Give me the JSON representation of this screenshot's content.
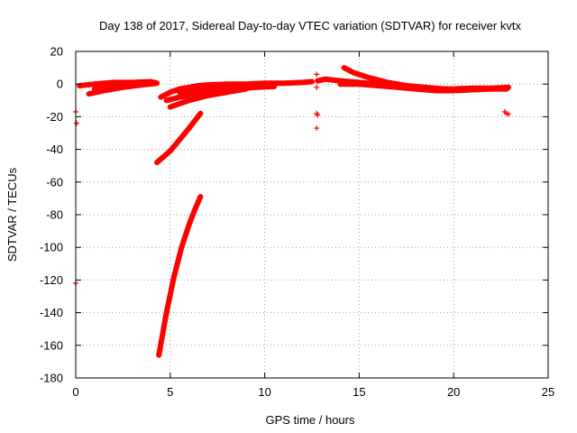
{
  "chart_data": {
    "type": "scatter",
    "title": "Day 138 of 2017, Sidereal Day-to-day VTEC variation (SDTVAR) for receiver kvtx",
    "xlabel": "GPS time / hours",
    "ylabel": "SDTVAR / TECUs",
    "xlim": [
      0,
      25
    ],
    "ylim": [
      -180,
      20
    ],
    "xticks": [
      0,
      5,
      10,
      15,
      20,
      25
    ],
    "yticks": [
      20,
      0,
      -20,
      -40,
      -60,
      -80,
      -100,
      -120,
      -140,
      -160,
      -180
    ],
    "grid": true,
    "marker": "+",
    "color": "#ff0000",
    "series": [
      {
        "tracks": [
          [
            [
              0.2,
              -1
            ],
            [
              1.0,
              0
            ],
            [
              2.0,
              1
            ],
            [
              3.0,
              1
            ],
            [
              4.0,
              1.5
            ]
          ],
          [
            [
              0.7,
              -6
            ],
            [
              1.5,
              -4
            ],
            [
              2.5,
              -2
            ],
            [
              3.5,
              -0.5
            ],
            [
              4.3,
              0.5
            ]
          ],
          [
            [
              1.0,
              -3
            ],
            [
              2.0,
              -1
            ],
            [
              3.0,
              0.5
            ],
            [
              4.2,
              1
            ]
          ],
          [
            [
              4.5,
              -8
            ],
            [
              5.0,
              -5
            ],
            [
              5.5,
              -3
            ],
            [
              6.0,
              -2
            ],
            [
              6.5,
              -1
            ],
            [
              7.0,
              -0.5
            ],
            [
              8.0,
              0
            ],
            [
              9.0,
              0
            ],
            [
              10.0,
              0.5
            ],
            [
              11.0,
              0.5
            ],
            [
              12.0,
              1
            ],
            [
              12.5,
              1.5
            ]
          ],
          [
            [
              4.8,
              -10
            ],
            [
              5.5,
              -8
            ],
            [
              6.5,
              -6
            ],
            [
              7.5,
              -4
            ],
            [
              8.5,
              -3
            ],
            [
              9.5,
              -2
            ],
            [
              10.5,
              -1.5
            ]
          ],
          [
            [
              5.0,
              -14
            ],
            [
              5.5,
              -12
            ],
            [
              6.0,
              -10
            ],
            [
              7.0,
              -7
            ],
            [
              8.0,
              -5
            ],
            [
              9.0,
              -3
            ]
          ],
          [
            [
              5.5,
              -5
            ],
            [
              6.5,
              -3
            ],
            [
              7.5,
              -2
            ],
            [
              8.5,
              -1.5
            ],
            [
              9.5,
              -1
            ],
            [
              10.5,
              -0.5
            ]
          ],
          [
            [
              4.3,
              -48
            ],
            [
              5.0,
              -41
            ],
            [
              5.5,
              -34
            ],
            [
              6.0,
              -27
            ],
            [
              6.6,
              -18
            ]
          ],
          [
            [
              4.4,
              -166
            ],
            [
              4.8,
              -140
            ],
            [
              5.2,
              -118
            ],
            [
              5.6,
              -100
            ],
            [
              6.0,
              -86
            ],
            [
              6.3,
              -77
            ],
            [
              6.6,
              -69
            ]
          ],
          [
            [
              12.8,
              2
            ],
            [
              13.2,
              3
            ],
            [
              14.0,
              2
            ],
            [
              15.0,
              1
            ],
            [
              16.0,
              0
            ],
            [
              17.0,
              -1
            ],
            [
              18.0,
              -2
            ],
            [
              19.0,
              -3
            ],
            [
              20.0,
              -3
            ],
            [
              21.0,
              -2.5
            ],
            [
              22.0,
              -2.5
            ],
            [
              22.9,
              -2
            ]
          ],
          [
            [
              14.2,
              10
            ],
            [
              14.7,
              7
            ],
            [
              15.5,
              4
            ],
            [
              16.5,
              1
            ],
            [
              17.5,
              -1
            ],
            [
              18.5,
              -2
            ],
            [
              19.5,
              -3
            ],
            [
              20.5,
              -3.5
            ]
          ],
          [
            [
              14.0,
              0
            ],
            [
              15.0,
              0
            ],
            [
              16.0,
              -1
            ],
            [
              17.0,
              -2
            ],
            [
              18.0,
              -3
            ],
            [
              19.0,
              -4
            ],
            [
              20.0,
              -4
            ],
            [
              21.0,
              -3.5
            ],
            [
              22.0,
              -3
            ],
            [
              22.8,
              -3
            ]
          ]
        ],
        "points": [
          [
            0.0,
            -17
          ],
          [
            0.05,
            -24
          ],
          [
            0.0,
            -122
          ],
          [
            12.75,
            6
          ],
          [
            12.75,
            -2
          ],
          [
            12.75,
            -18
          ],
          [
            12.8,
            -19
          ],
          [
            12.75,
            -27
          ],
          [
            22.7,
            -17
          ],
          [
            22.8,
            -18
          ],
          [
            22.9,
            -18.5
          ]
        ]
      }
    ]
  }
}
